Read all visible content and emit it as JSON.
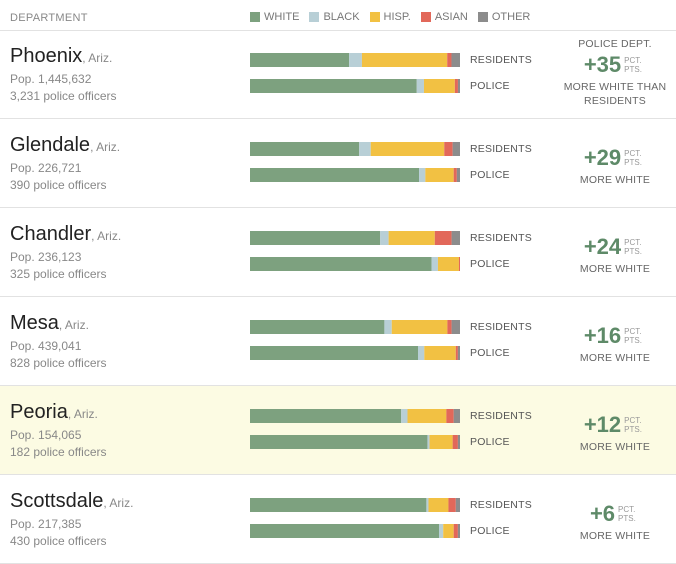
{
  "header": {
    "department_label": "DEPARTMENT",
    "legend": [
      {
        "label": "WHITE",
        "color": "#7da17f"
      },
      {
        "label": "BLACK",
        "color": "#b8cfd6"
      },
      {
        "label": "HISP.",
        "color": "#f2c143"
      },
      {
        "label": "ASIAN",
        "color": "#e2685a"
      },
      {
        "label": "OTHER",
        "color": "#8c8c8c"
      }
    ]
  },
  "stat_header": "POLICE DEPT.",
  "stat_units": "PCT. PTS.",
  "bar_labels": {
    "residents": "RESIDENTS",
    "police": "POLICE"
  },
  "chart_data": {
    "type": "bar",
    "stacked": true,
    "orientation": "horizontal",
    "units": "percent of population",
    "series_names": [
      "WHITE",
      "BLACK",
      "HISP.",
      "ASIAN",
      "OTHER"
    ],
    "rows": [
      {
        "city": "Phoenix",
        "state": ", Ariz.",
        "pop": "Pop. 1,445,632",
        "officers": "3,231 police officers",
        "residents": [
          46.5,
          6,
          40,
          2,
          4
        ],
        "police": [
          81,
          3.5,
          15,
          1.5,
          1
        ],
        "diff": "+35",
        "desc": "MORE WHITE THAN RESIDENTS",
        "highlight": false
      },
      {
        "city": "Glendale",
        "state": ", Ariz.",
        "pop": "Pop. 226,721",
        "officers": "390 police officers",
        "residents": [
          52,
          5.5,
          35,
          4,
          3.5
        ],
        "police": [
          80.5,
          3,
          13.5,
          1.5,
          1.5
        ],
        "diff": "+29",
        "desc": "MORE WHITE",
        "highlight": false
      },
      {
        "city": "Chandler",
        "state": ", Ariz.",
        "pop": "Pop. 236,123",
        "officers": "325 police officers",
        "residents": [
          62,
          4,
          22,
          8,
          4
        ],
        "police": [
          86.5,
          3,
          10,
          0.5,
          0
        ],
        "diff": "+24",
        "desc": "MORE WHITE",
        "highlight": false
      },
      {
        "city": "Mesa",
        "state": ", Ariz.",
        "pop": "Pop. 439,041",
        "officers": "828 police officers",
        "residents": [
          64,
          3.5,
          26.5,
          2,
          4
        ],
        "police": [
          80,
          3,
          15,
          1,
          1
        ],
        "diff": "+16",
        "desc": "MORE WHITE",
        "highlight": false
      },
      {
        "city": "Peoria",
        "state": ", Ariz.",
        "pop": "Pop. 154,065",
        "officers": "182 police officers",
        "residents": [
          72,
          3,
          18.5,
          3.5,
          3
        ],
        "police": [
          84.5,
          1,
          11,
          2.5,
          1
        ],
        "diff": "+12",
        "desc": "MORE WHITE",
        "highlight": true
      },
      {
        "city": "Scottsdale",
        "state": ", Ariz.",
        "pop": "Pop. 217,385",
        "officers": "430 police officers",
        "residents": [
          84,
          1,
          9.5,
          3.5,
          2
        ],
        "police": [
          90,
          2,
          5,
          2,
          1
        ],
        "diff": "+6",
        "desc": "MORE WHITE",
        "highlight": false
      }
    ]
  }
}
